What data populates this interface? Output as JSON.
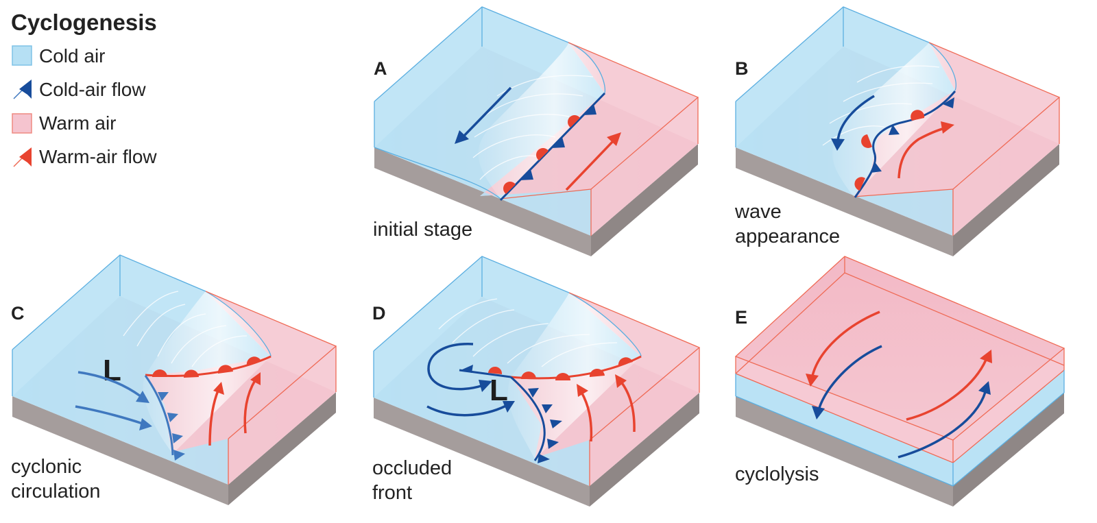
{
  "title": "Cyclogenesis",
  "legend": [
    {
      "label": "Cold air",
      "kind": "cold-air",
      "color": "#b6e0f4"
    },
    {
      "label": "Cold-air flow",
      "kind": "cold-flow",
      "color": "#174c9b"
    },
    {
      "label": "Warm air",
      "kind": "warm-air",
      "color": "#f5c4cf"
    },
    {
      "label": "Warm-air flow",
      "kind": "warm-flow",
      "color": "#e8432f"
    }
  ],
  "panels": [
    {
      "letter": "A",
      "caption_lines": [
        "initial stage"
      ]
    },
    {
      "letter": "B",
      "caption_lines": [
        "wave",
        "appearance"
      ]
    },
    {
      "letter": "C",
      "caption_lines": [
        "cyclonic",
        "circulation"
      ],
      "low_label": "L"
    },
    {
      "letter": "D",
      "caption_lines": [
        "occluded",
        "front"
      ],
      "low_label": "L"
    },
    {
      "letter": "E",
      "caption_lines": [
        "cyclolysis"
      ]
    }
  ],
  "colors": {
    "cold_fill": "#b6e0f4",
    "cold_edge": "#5aaee0",
    "warm_fill": "#f5c4cf",
    "warm_edge": "#ef6a55",
    "cold_flow": "#174c9b",
    "cold_flow_light": "#3f78bf",
    "warm_flow": "#e8432f",
    "ground": "#a59d9c",
    "text": "#222222"
  }
}
